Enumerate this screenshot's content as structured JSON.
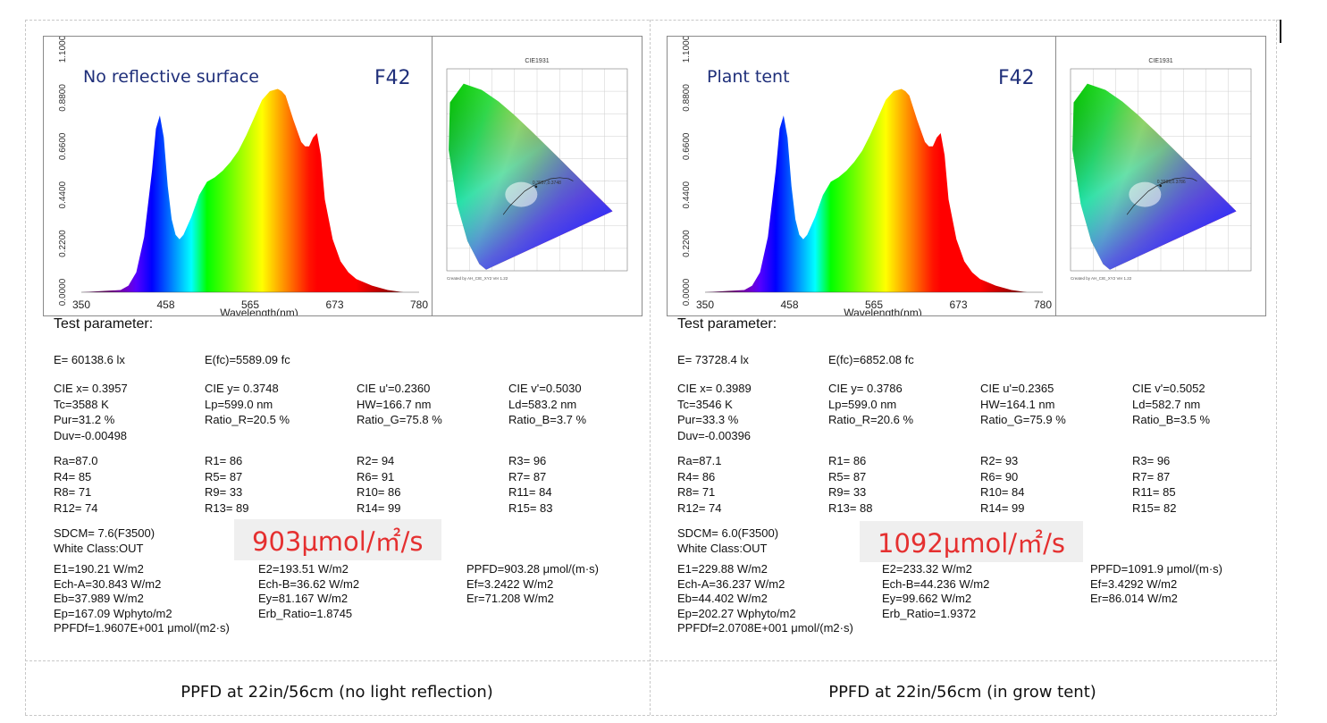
{
  "panels": [
    {
      "spectrum_title": "No reflective surface",
      "spectrum_code": "F42",
      "params_header": "Test parameter:",
      "row_e": [
        "E=  60138.6 lx",
        "E(fc)=5589.09 fc"
      ],
      "col1": [
        "CIE x= 0.3957",
        "Tc=3588 K",
        "Pur=31.2 %",
        "Duv=-0.00498"
      ],
      "col2": [
        "CIE y= 0.3748",
        "Lp=599.0 nm",
        "Ratio_R=20.5 %"
      ],
      "col3": [
        "CIE u'=0.2360",
        "HW=166.7 nm",
        "Ratio_G=75.8 %"
      ],
      "col4": [
        "CIE v'=0.5030",
        "Ld=583.2 nm",
        "Ratio_B=3.7 %"
      ],
      "r_col1": [
        "Ra=87.0",
        "R4= 85",
        "R8= 71",
        "R12= 74"
      ],
      "r_col2": [
        "R1= 86",
        "R5= 87",
        "R9= 33",
        "R13= 89"
      ],
      "r_col3": [
        "R2= 94",
        "R6= 91",
        "R10= 86",
        "R14= 99"
      ],
      "r_col4": [
        "R3= 96",
        "R7= 87",
        "R11= 84",
        "R15= 83"
      ],
      "sdcm": [
        "SDCM= 7.6(F3500)",
        "White Class:OUT"
      ],
      "highlight": "903μmol/㎡/s",
      "e_col1": [
        "E1=190.21 W/m2",
        "Ech-A=30.843 W/m2",
        "Eb=37.989 W/m2",
        "Ep=167.09 Wphyto/m2",
        "PPFDf=1.9607E+001 μmol/(m2·s)"
      ],
      "e_col2": [
        "E2=193.51 W/m2",
        "Ech-B=36.62 W/m2",
        "Ey=81.167 W/m2",
        "Erb_Ratio=1.8745"
      ],
      "e_col3": [
        "PPFD=903.28 μmol/(m·s)",
        "Ef=3.2422 W/m2",
        "Er=71.208 W/m2"
      ],
      "caption": "PPFD at 22in/56cm (no light reflection)"
    },
    {
      "spectrum_title": "Plant tent",
      "spectrum_code": "F42",
      "params_header": "Test parameter:",
      "row_e": [
        "E=  73728.4 lx",
        "E(fc)=6852.08 fc"
      ],
      "col1": [
        "CIE x= 0.3989",
        "Tc=3546 K",
        "Pur=33.3 %",
        "Duv=-0.00396"
      ],
      "col2": [
        "CIE y= 0.3786",
        "Lp=599.0 nm",
        "Ratio_R=20.6 %"
      ],
      "col3": [
        "CIE u'=0.2365",
        "HW=164.1 nm",
        "Ratio_G=75.9 %"
      ],
      "col4": [
        "CIE v'=0.5052",
        "Ld=582.7 nm",
        "Ratio_B=3.5 %"
      ],
      "r_col1": [
        "Ra=87.1",
        "R4= 86",
        "R8= 71",
        "R12= 74"
      ],
      "r_col2": [
        "R1= 86",
        "R5= 87",
        "R9= 33",
        "R13= 88"
      ],
      "r_col3": [
        "R2= 93",
        "R6= 90",
        "R10= 84",
        "R14= 99"
      ],
      "r_col4": [
        "R3= 96",
        "R7= 87",
        "R11= 85",
        "R15= 82"
      ],
      "sdcm": [
        "SDCM= 6.0(F3500)",
        "White Class:OUT"
      ],
      "highlight": "1092μmol/㎡/s",
      "e_col1": [
        "E1=229.88 W/m2",
        "Ech-A=36.237 W/m2",
        "Eb=44.402 W/m2",
        "Ep=202.27 Wphyto/m2",
        "PPFDf=2.0708E+001 μmol/(m2·s)"
      ],
      "e_col2": [
        "E2=233.32 W/m2",
        "Ech-B=44.236 W/m2",
        "Ey=99.662 W/m2",
        "Erb_Ratio=1.9372"
      ],
      "e_col3": [
        "PPFD=1091.9 μmol/(m·s)",
        "Ef=3.4292 W/m2",
        "Er=86.014 W/m2"
      ],
      "caption": "PPFD at 22in/56cm (in grow tent)"
    }
  ],
  "chart_data": [
    {
      "type": "area",
      "xlabel": "Wavelength(nm)",
      "xticks": [
        "350",
        "458",
        "565",
        "673",
        "780"
      ],
      "yticks": [
        "0.0000",
        "0.2200",
        "0.4400",
        "0.6600",
        "0.8800",
        "1.1000"
      ],
      "xlim": [
        350,
        780
      ],
      "ylim": [
        0,
        1.1
      ],
      "x": [
        350,
        400,
        410,
        420,
        430,
        440,
        445,
        450,
        455,
        460,
        465,
        470,
        475,
        480,
        490,
        500,
        510,
        520,
        530,
        540,
        550,
        560,
        570,
        580,
        590,
        600,
        605,
        610,
        620,
        630,
        635,
        640,
        645,
        650,
        655,
        660,
        670,
        680,
        690,
        700,
        720,
        740,
        760,
        780
      ],
      "y": [
        0,
        0.01,
        0.03,
        0.09,
        0.25,
        0.55,
        0.74,
        0.8,
        0.7,
        0.48,
        0.33,
        0.26,
        0.24,
        0.26,
        0.34,
        0.44,
        0.5,
        0.52,
        0.55,
        0.59,
        0.64,
        0.71,
        0.79,
        0.87,
        0.91,
        0.92,
        0.91,
        0.89,
        0.78,
        0.68,
        0.66,
        0.66,
        0.7,
        0.72,
        0.62,
        0.42,
        0.24,
        0.14,
        0.09,
        0.06,
        0.03,
        0.01,
        0.0,
        0.0
      ]
    },
    {
      "type": "scatter",
      "title": "CIE1931",
      "xlim": [
        0,
        0.8
      ],
      "ylim": [
        0,
        0.9
      ],
      "series": [
        {
          "values": [
            [
              0.3957,
              0.3748
            ]
          ]
        },
        {
          "values": [
            [
              0.3989,
              0.3786
            ]
          ]
        }
      ],
      "point_labels": [
        "0.3957,0.3748",
        "0.3989,0.3786"
      ],
      "footer_note": "Created by AH_CIE_XY2 Ver 1.22"
    }
  ]
}
